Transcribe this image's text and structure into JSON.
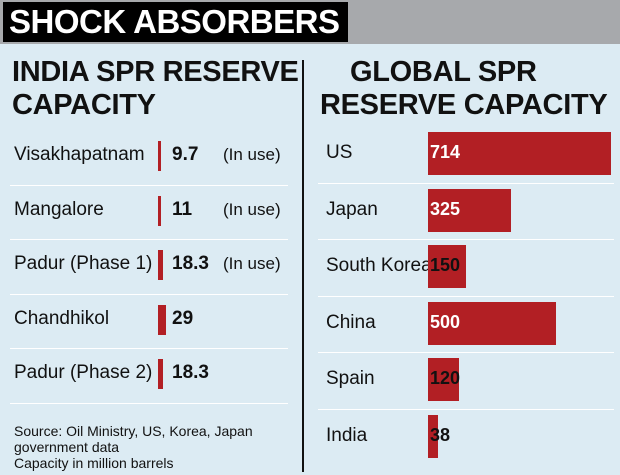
{
  "banner": {
    "title": "SHOCK ABSORBERS"
  },
  "chart_data": [
    {
      "type": "bar",
      "title": "INDIA SPR RESERVE CAPACITY",
      "title_lines": [
        "INDIA SPR RESERVE",
        "CAPACITY"
      ],
      "categories": [
        "Visakhapatnam",
        "Mangalore",
        "Padur (Phase 1)",
        "Chandhikol",
        "Padur (Phase 2)"
      ],
      "values": [
        9.7,
        11,
        18.3,
        29,
        18.3
      ],
      "labels": [
        "9.7",
        "11",
        "18.3",
        "29",
        "18.3"
      ],
      "status": [
        "(In use)",
        "(In use)",
        "(In use)",
        "",
        ""
      ],
      "unit": "million barrels"
    },
    {
      "type": "bar",
      "title": "GLOBAL SPR RESERVE CAPACITY",
      "title_lines": [
        "GLOBAL SPR",
        "RESERVE CAPACITY"
      ],
      "categories": [
        "US",
        "Japan",
        "South Korea",
        "China",
        "Spain",
        "India"
      ],
      "values": [
        714,
        325,
        150,
        500,
        120,
        38
      ],
      "labels": [
        "714",
        "325",
        "150",
        "500",
        "120",
        "38"
      ],
      "unit": "million barrels"
    }
  ],
  "footer": {
    "source_line1": "Source: Oil Ministry, US, Korea, Japan",
    "source_line2": "government data",
    "unit_note": "Capacity in million barrels"
  },
  "colors": {
    "bar": "#b21f24",
    "background": "#dcebf3",
    "banner": "#a7a9ac"
  }
}
